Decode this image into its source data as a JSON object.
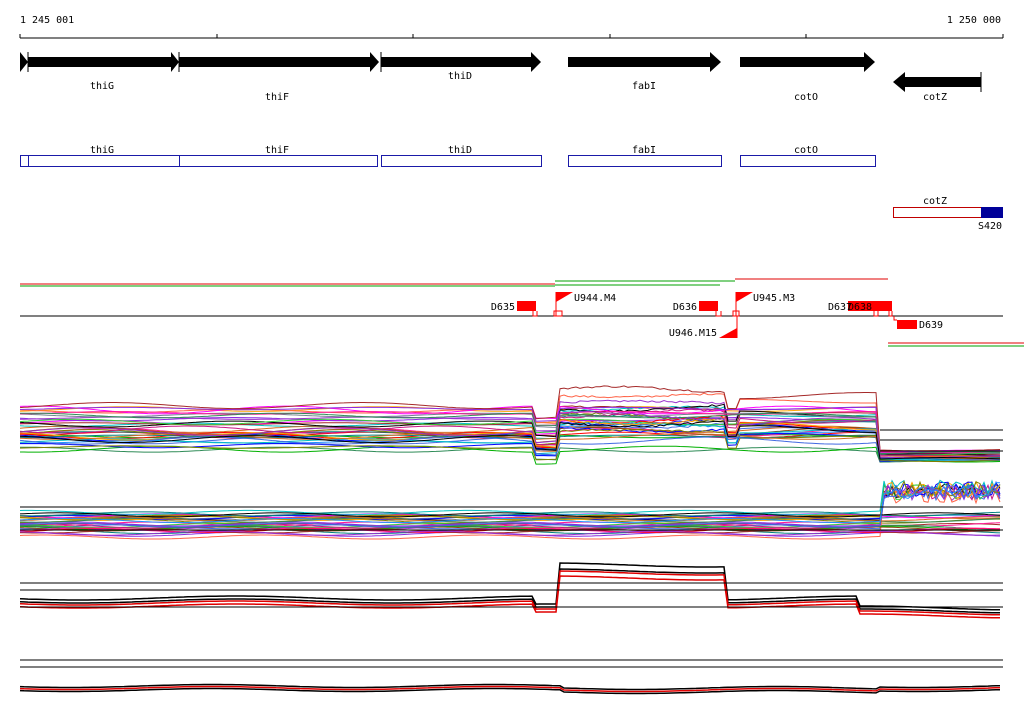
{
  "ruler": {
    "start_label": "1 245 001",
    "end_label": "1 250 000"
  },
  "genes": [
    {
      "name": "thiG",
      "strand": "+"
    },
    {
      "name": "thiF",
      "strand": "+"
    },
    {
      "name": "thiD",
      "strand": "+"
    },
    {
      "name": "fabI",
      "strand": "+"
    },
    {
      "name": "cotO",
      "strand": "+"
    },
    {
      "name": "cotZ",
      "strand": "-"
    }
  ],
  "cds_boxes": [
    {
      "name": "thiG"
    },
    {
      "name": "thiF"
    },
    {
      "name": "thiD"
    },
    {
      "name": "fabI"
    },
    {
      "name": "cotO"
    }
  ],
  "cotz_track": {
    "name": "cotZ",
    "tag": "S420"
  },
  "features": [
    {
      "name": "D635",
      "kind": "block"
    },
    {
      "name": "U944.M4",
      "kind": "flag"
    },
    {
      "name": "D636",
      "kind": "block"
    },
    {
      "name": "U945.M3",
      "kind": "flag"
    },
    {
      "name": "U946.M15",
      "kind": "flag-down"
    },
    {
      "name": "D637",
      "kind": "block"
    },
    {
      "name": "D638",
      "kind": "block"
    },
    {
      "name": "D639",
      "kind": "block-below"
    }
  ],
  "colors": {
    "gene_arrow": "#000000",
    "cds_outline": "#1a1aa8",
    "cotz_outline": "#c00000",
    "s420_fill": "#000099",
    "feature_fill": "#ff0000",
    "transcript_green": "#00a000",
    "transcript_red": "#e00000"
  }
}
